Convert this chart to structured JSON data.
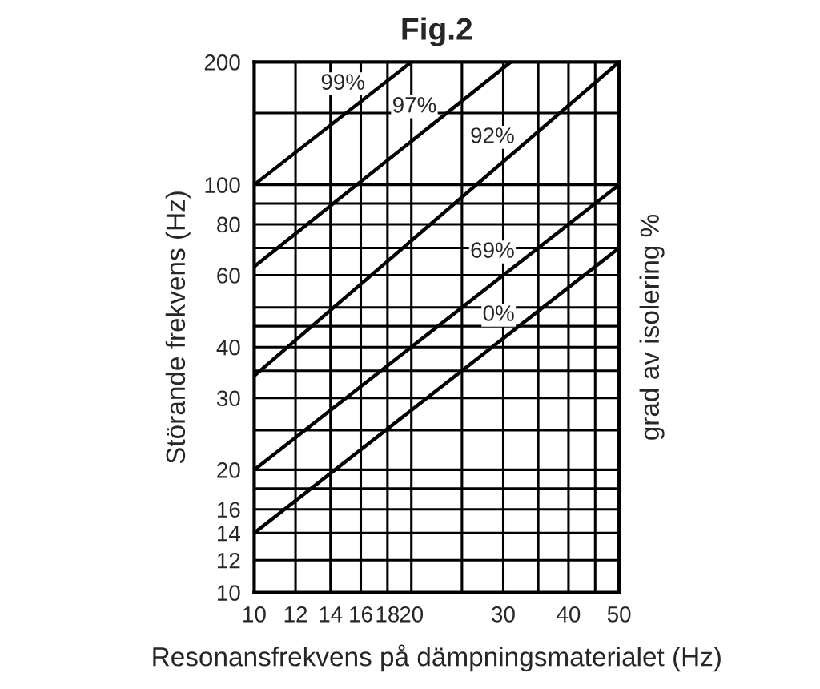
{
  "chart_data": {
    "type": "line",
    "title": "Fig.2",
    "xlabel": "Resonansfrekvens på dämpningsmaterialet (Hz)",
    "ylabel": "Störande frekvens (Hz)",
    "annotations": [
      "grad av isolering %"
    ],
    "log": "xy",
    "grid": true,
    "legend": false,
    "marker": "none",
    "line_style": "solid",
    "xlim": [
      10,
      50
    ],
    "ylim": [
      10,
      200
    ],
    "xticks": [
      10,
      12,
      14,
      16,
      18,
      20,
      {
        "value": 25,
        "label": null
      },
      30,
      {
        "value": 35,
        "label": null
      },
      40,
      {
        "value": 45,
        "label": null
      },
      50
    ],
    "yticks": [
      10,
      12,
      14,
      16,
      {
        "value": 18,
        "label": null
      },
      20,
      {
        "value": 25,
        "label": null
      },
      30,
      {
        "value": 35,
        "label": null
      },
      40,
      {
        "value": 45,
        "label": null
      },
      {
        "value": 50,
        "label": null
      },
      60,
      {
        "value": 70,
        "label": null
      },
      80,
      {
        "value": 90,
        "label": null
      },
      100,
      {
        "value": 150,
        "label": null
      },
      200
    ],
    "series": [
      {
        "name": "99%",
        "color": "#000000",
        "x": [
          10,
          20
        ],
        "values": [
          100,
          200
        ]
      },
      {
        "name": "97%",
        "color": "#000000",
        "x": [
          10,
          31
        ],
        "values": [
          63,
          200
        ]
      },
      {
        "name": "92%",
        "color": "#000000",
        "x": [
          10,
          50
        ],
        "values": [
          34,
          200
        ]
      },
      {
        "name": "69%",
        "color": "#000000",
        "x": [
          10,
          50
        ],
        "values": [
          20,
          100
        ]
      },
      {
        "name": "0%",
        "color": "#000000",
        "x": [
          10,
          50
        ],
        "values": [
          14,
          70
        ]
      }
    ]
  }
}
